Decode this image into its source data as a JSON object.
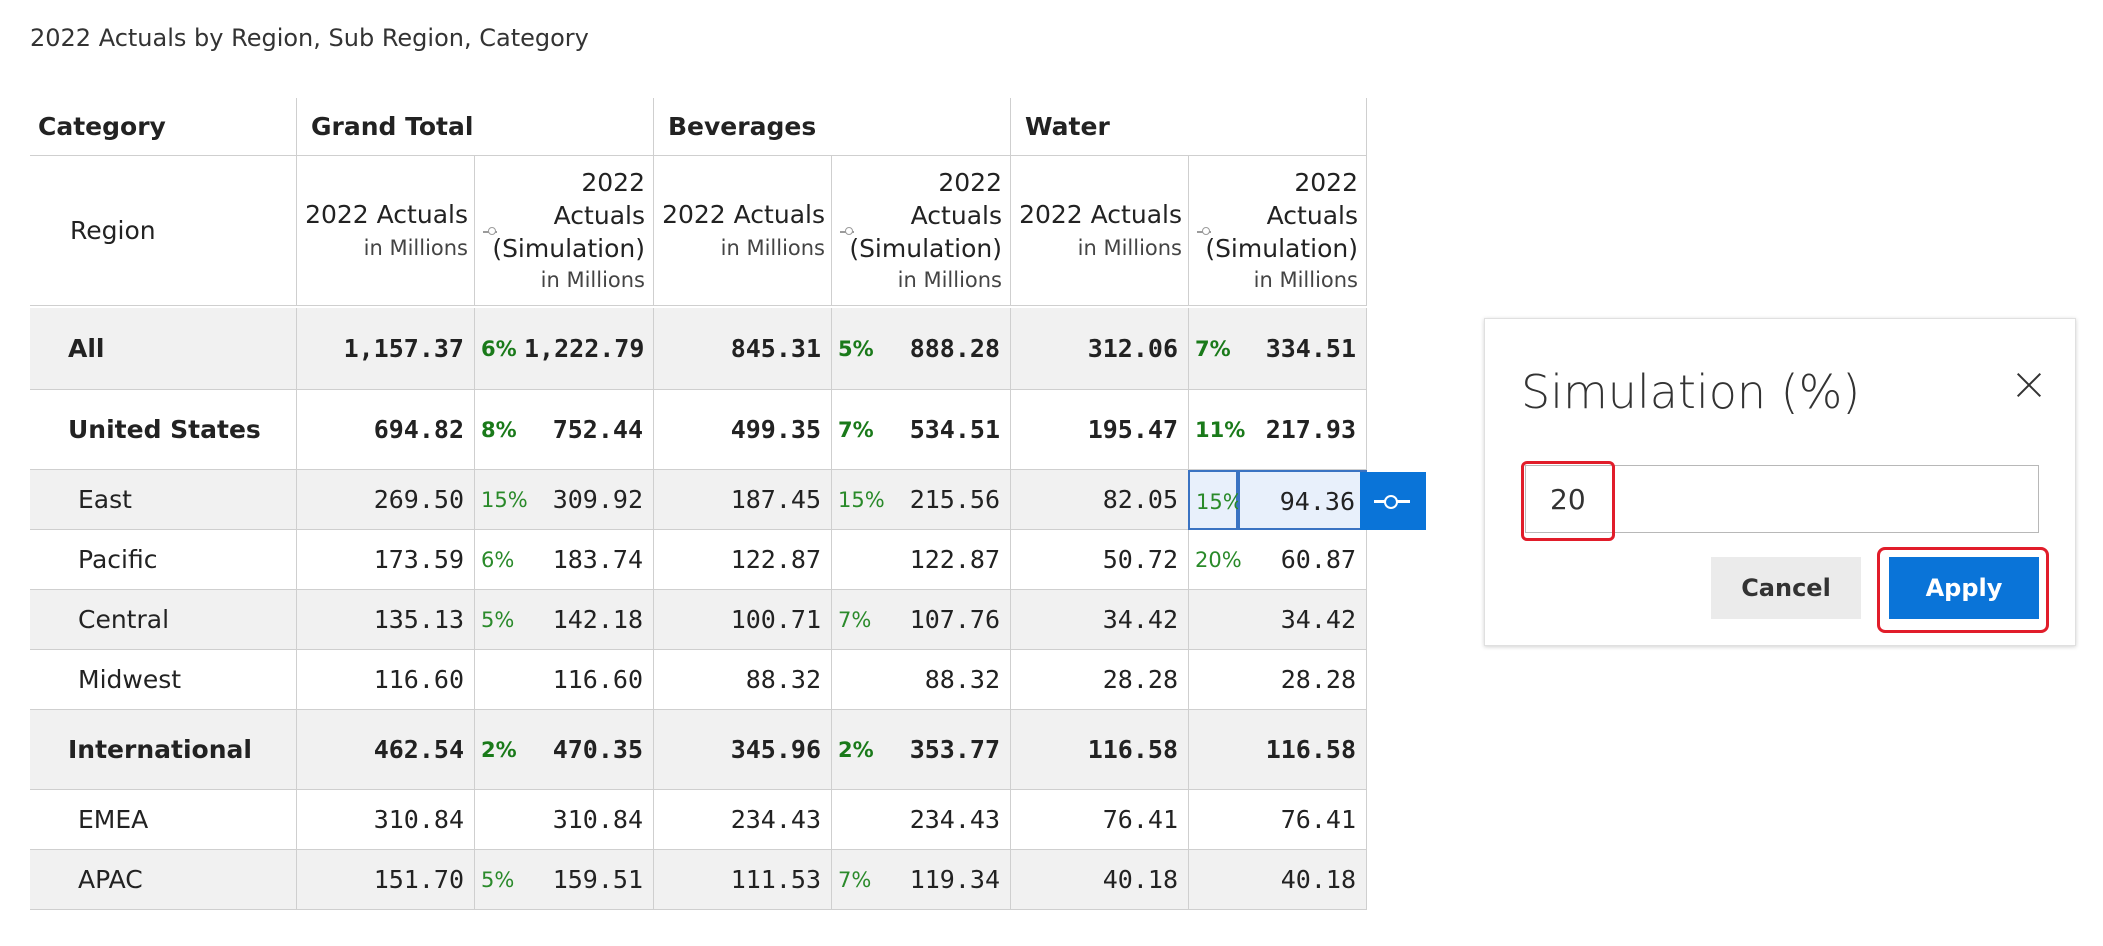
{
  "page_title": "2022 Actuals by Region, Sub Region, Category",
  "columns": {
    "category_header": "Category",
    "region_header": "Region",
    "groups": [
      "Grand Total",
      "Beverages",
      "Water"
    ],
    "actuals_label": "2022 Actuals",
    "simulation_label_lines": [
      "2022",
      "Actuals",
      "(Simulation)"
    ],
    "units": "in Millions"
  },
  "rows": [
    {
      "label": "All",
      "bold": true,
      "values": [
        "1,157.37",
        "6%",
        "1,222.79",
        "845.31",
        "5%",
        "888.28",
        "312.06",
        "7%",
        "334.51"
      ]
    },
    {
      "label": "United States",
      "bold": true,
      "values": [
        "694.82",
        "8%",
        "752.44",
        "499.35",
        "7%",
        "534.51",
        "195.47",
        "11%",
        "217.93"
      ]
    },
    {
      "label": "East",
      "bold": false,
      "values": [
        "269.50",
        "15%",
        "309.92",
        "187.45",
        "15%",
        "215.56",
        "82.05",
        "15%",
        "94.36"
      ]
    },
    {
      "label": "Pacific",
      "bold": false,
      "values": [
        "173.59",
        "6%",
        "183.74",
        "122.87",
        "",
        "122.87",
        "50.72",
        "20%",
        "60.87"
      ]
    },
    {
      "label": "Central",
      "bold": false,
      "values": [
        "135.13",
        "5%",
        "142.18",
        "100.71",
        "7%",
        "107.76",
        "34.42",
        "",
        "34.42"
      ]
    },
    {
      "label": "Midwest",
      "bold": false,
      "values": [
        "116.60",
        "",
        "116.60",
        "88.32",
        "",
        "88.32",
        "28.28",
        "",
        "28.28"
      ]
    },
    {
      "label": "International",
      "bold": true,
      "values": [
        "462.54",
        "2%",
        "470.35",
        "345.96",
        "2%",
        "353.77",
        "116.58",
        "",
        "116.58"
      ]
    },
    {
      "label": "EMEA",
      "bold": false,
      "values": [
        "310.84",
        "",
        "310.84",
        "234.43",
        "",
        "234.43",
        "76.41",
        "",
        "76.41"
      ]
    },
    {
      "label": "APAC",
      "bold": false,
      "values": [
        "151.70",
        "5%",
        "159.51",
        "111.53",
        "7%",
        "119.34",
        "40.18",
        "",
        "40.18"
      ]
    }
  ],
  "dialog": {
    "title": "Simulation (%)",
    "input_value": "20",
    "cancel_label": "Cancel",
    "apply_label": "Apply"
  },
  "colors": {
    "accent_blue": "#0a74d8",
    "highlight_red": "#e11d2a",
    "percent_green": "#2a8a2a"
  }
}
